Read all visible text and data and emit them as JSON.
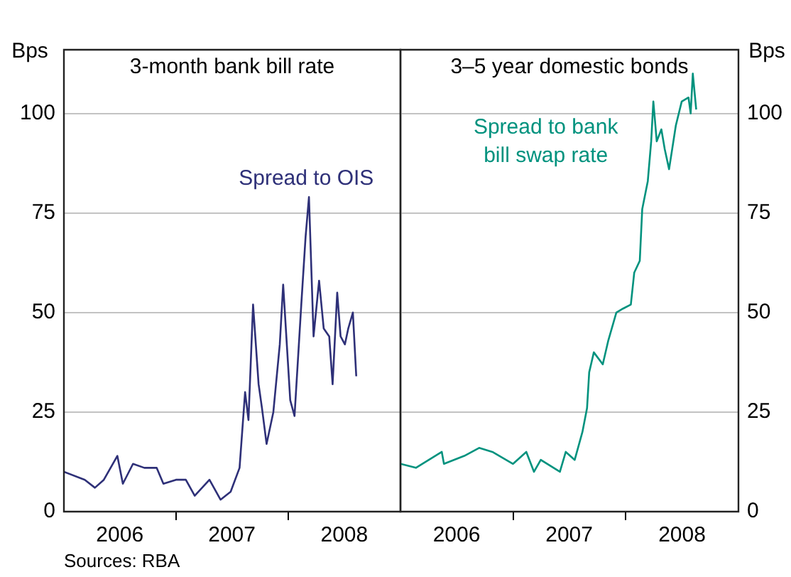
{
  "chart_data": [
    {
      "type": "line",
      "title": "3-month bank bill rate",
      "ylabel": "Bps",
      "xlim": [
        "2006-01-01",
        "2009-01-01"
      ],
      "xticks": [
        {
          "value": "2006-07-02",
          "label": "2006"
        },
        {
          "value": "2007-01-01",
          "label": null
        },
        {
          "value": "2007-07-02",
          "label": "2007"
        },
        {
          "value": "2008-01-01",
          "label": null
        },
        {
          "value": "2008-07-02",
          "label": "2008"
        }
      ],
      "ylim": [
        0,
        116
      ],
      "yticks": [
        0,
        25,
        50,
        75,
        100
      ],
      "grid": "y",
      "series": [
        {
          "name": "Spread to OIS",
          "color": "#2e3078",
          "x": [
            "2006-01-01",
            "2006-03-10",
            "2006-04-12",
            "2006-05-11",
            "2006-06-24",
            "2006-07-12",
            "2006-08-14",
            "2006-09-20",
            "2006-10-30",
            "2006-11-21",
            "2007-01-01",
            "2007-02-02",
            "2007-03-03",
            "2007-04-20",
            "2007-05-26",
            "2007-06-28",
            "2007-07-27",
            "2007-08-14",
            "2007-08-25",
            "2007-09-09",
            "2007-09-27",
            "2007-10-08",
            "2007-10-23",
            "2007-11-14",
            "2007-12-05",
            "2007-12-16",
            "2008-01-08",
            "2008-01-22",
            "2008-02-13",
            "2008-02-27",
            "2008-03-09",
            "2008-03-24",
            "2008-04-11",
            "2008-04-26",
            "2008-05-14",
            "2008-05-25",
            "2008-06-09",
            "2008-06-20",
            "2008-07-04",
            "2008-07-15",
            "2008-07-30",
            "2008-08-10"
          ],
          "values": [
            10,
            8,
            6,
            8,
            14,
            7,
            12,
            11,
            11,
            7,
            8,
            8,
            4,
            8,
            3,
            5,
            11,
            30,
            23,
            52,
            32,
            26,
            17,
            25,
            42,
            57,
            28,
            24,
            52,
            69,
            79,
            44,
            58,
            46,
            44,
            32,
            55,
            44,
            42,
            46,
            50,
            34
          ]
        }
      ],
      "annotations": [
        "Sources: RBA"
      ]
    },
    {
      "type": "line",
      "title": "3–5 year domestic bonds",
      "y2label": "Bps",
      "xlim": [
        "2006-01-01",
        "2009-01-01"
      ],
      "xticks": [
        {
          "value": "2006-07-02",
          "label": "2006"
        },
        {
          "value": "2007-01-01",
          "label": null
        },
        {
          "value": "2007-07-02",
          "label": "2007"
        },
        {
          "value": "2008-01-01",
          "label": null
        },
        {
          "value": "2008-07-02",
          "label": "2008"
        }
      ],
      "y2lim": [
        0,
        116
      ],
      "y2ticks": [
        0,
        25,
        50,
        75,
        100
      ],
      "grid": "y",
      "series": [
        {
          "name": "Spread to bank bill swap rate",
          "color": "#00927e",
          "axis": "y2",
          "x": [
            "2006-01-01",
            "2006-02-20",
            "2006-05-15",
            "2006-05-22",
            "2006-07-27",
            "2006-09-13",
            "2006-10-26",
            "2007-01-01",
            "2007-02-13",
            "2007-03-10",
            "2007-04-01",
            "2007-06-02",
            "2007-06-21",
            "2007-07-20",
            "2007-08-14",
            "2007-08-29",
            "2007-09-05",
            "2007-09-20",
            "2007-10-19",
            "2007-11-06",
            "2007-12-02",
            "2007-12-24",
            "2008-01-18",
            "2008-01-29",
            "2008-02-16",
            "2008-02-24",
            "2008-03-13",
            "2008-03-24",
            "2008-03-31",
            "2008-04-11",
            "2008-04-26",
            "2008-05-07",
            "2008-05-21",
            "2008-06-12",
            "2008-07-01",
            "2008-07-23",
            "2008-07-30",
            "2008-08-06",
            "2008-08-17"
          ],
          "values": [
            12,
            11,
            15,
            12,
            14,
            16,
            15,
            12,
            15,
            10,
            13,
            10,
            15,
            13,
            20,
            26,
            35,
            40,
            37,
            43,
            50,
            51,
            52,
            60,
            63,
            76,
            83,
            93,
            103,
            93,
            96,
            91,
            86,
            97,
            103,
            104,
            100,
            110,
            101
          ]
        }
      ]
    }
  ]
}
